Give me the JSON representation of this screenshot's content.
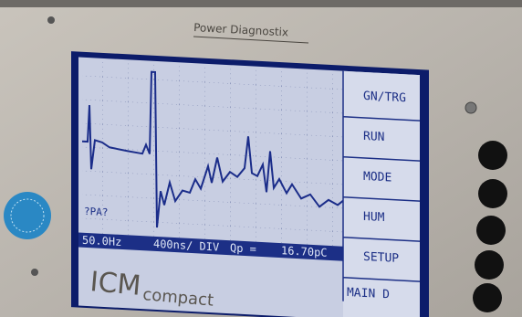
{
  "brand": "Power Diagnostix",
  "menu": [
    "GN/TRG",
    "RUN",
    "MODE",
    "HUM",
    "SETUP"
  ],
  "status": {
    "frequency": "50.0Hz",
    "timebase": "400ns/ DIV",
    "charge_label": "Qp =",
    "charge": "16.70pC",
    "mode": "MAIN D"
  },
  "marker": "?PA?",
  "model": {
    "name": "ICM",
    "suffix": "compact"
  }
}
